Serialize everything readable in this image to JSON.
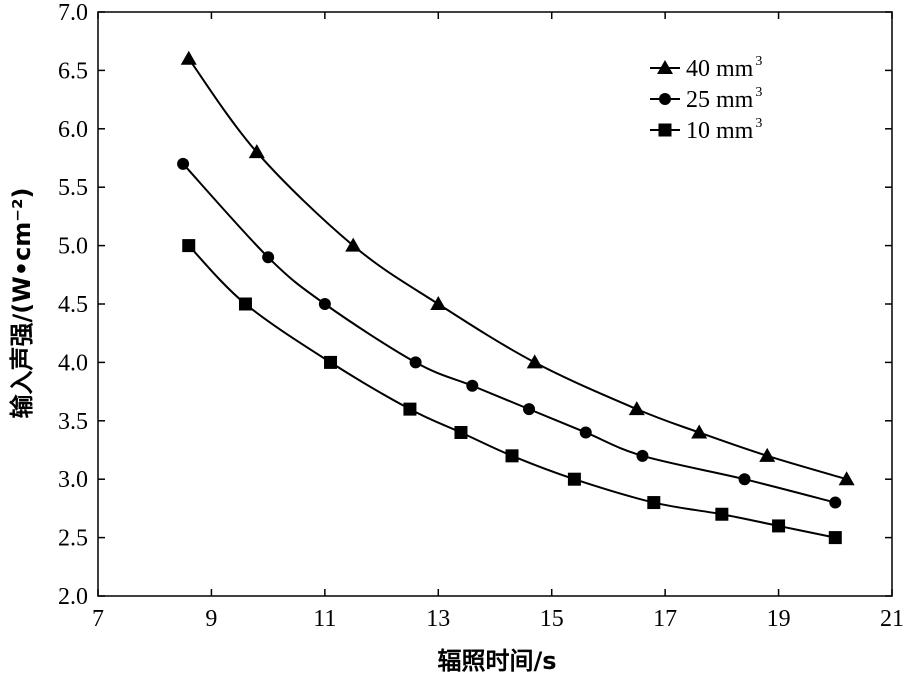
{
  "chart_data": {
    "type": "line",
    "title": "",
    "xlabel": "辐照时间/s",
    "ylabel": "输入声强/(W•cm⁻²)",
    "xlim": [
      7,
      21
    ],
    "ylim": [
      2.0,
      7.0
    ],
    "xticks": [
      "7",
      "9",
      "11",
      "13",
      "15",
      "17",
      "19",
      "21"
    ],
    "yticks": [
      "2.0",
      "2.5",
      "3.0",
      "3.5",
      "4.0",
      "4.5",
      "5.0",
      "5.5",
      "6.0",
      "6.5",
      "7.0"
    ],
    "grid": false,
    "legend_position": "top-right",
    "series": [
      {
        "name": "40 mm³",
        "label_main": "40 mm",
        "label_sup": "3",
        "marker": "triangle",
        "x": [
          8.6,
          9.8,
          11.5,
          13.0,
          14.7,
          16.5,
          17.6,
          18.8,
          20.2
        ],
        "y": [
          6.6,
          5.8,
          5.0,
          4.5,
          4.0,
          3.6,
          3.4,
          3.2,
          3.0
        ]
      },
      {
        "name": "25 mm³",
        "label_main": "25 mm",
        "label_sup": "3",
        "marker": "circle",
        "x": [
          8.5,
          10.0,
          11.0,
          12.6,
          13.6,
          14.6,
          15.6,
          16.6,
          18.4,
          20.0
        ],
        "y": [
          5.7,
          4.9,
          4.5,
          4.0,
          3.8,
          3.6,
          3.4,
          3.2,
          3.0,
          2.8
        ]
      },
      {
        "name": "10 mm³",
        "label_main": "10 mm",
        "label_sup": "3",
        "marker": "square",
        "x": [
          8.6,
          9.6,
          11.1,
          12.5,
          13.4,
          14.3,
          15.4,
          16.8,
          18.0,
          19.0,
          20.0
        ],
        "y": [
          5.0,
          4.5,
          4.0,
          3.6,
          3.4,
          3.2,
          3.0,
          2.8,
          2.7,
          2.6,
          2.5
        ]
      }
    ]
  }
}
